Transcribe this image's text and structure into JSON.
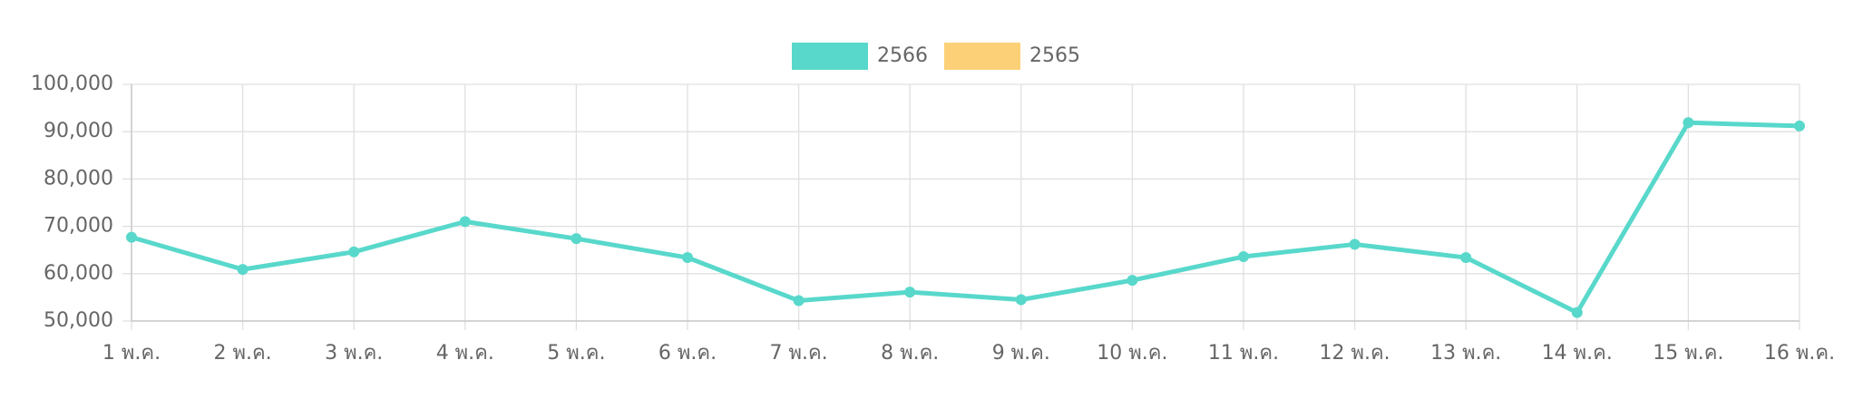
{
  "chart_data": {
    "type": "line",
    "categories": [
      "1 พ.ค.",
      "2 พ.ค.",
      "3 พ.ค.",
      "4 พ.ค.",
      "5 พ.ค.",
      "6 พ.ค.",
      "7 พ.ค.",
      "8 พ.ค.",
      "9 พ.ค.",
      "10 พ.ค.",
      "11 พ.ค.",
      "12 พ.ค.",
      "13 พ.ค.",
      "14 พ.ค.",
      "15 พ.ค.",
      "16 พ.ค."
    ],
    "series": [
      {
        "name": "2566",
        "color": "#58d8cb",
        "values": [
          67700,
          60900,
          64600,
          71000,
          67400,
          63400,
          54300,
          56100,
          54500,
          58600,
          63600,
          66200,
          63400,
          51800,
          91900,
          91200
        ]
      },
      {
        "name": "2565",
        "color": "#fcd077",
        "values": [
          null,
          null,
          null,
          null,
          null,
          null,
          null,
          null,
          null,
          null,
          null,
          null,
          null,
          null,
          null,
          null
        ]
      }
    ],
    "ylim": [
      50000,
      100000
    ],
    "yticks": [
      {
        "value": 50000,
        "label": "50,000"
      },
      {
        "value": 60000,
        "label": "60,000"
      },
      {
        "value": 70000,
        "label": "70,000"
      },
      {
        "value": 80000,
        "label": "80,000"
      },
      {
        "value": 90000,
        "label": "90,000"
      },
      {
        "value": 100000,
        "label": "100,000"
      }
    ],
    "grid": true,
    "legend": "top"
  }
}
